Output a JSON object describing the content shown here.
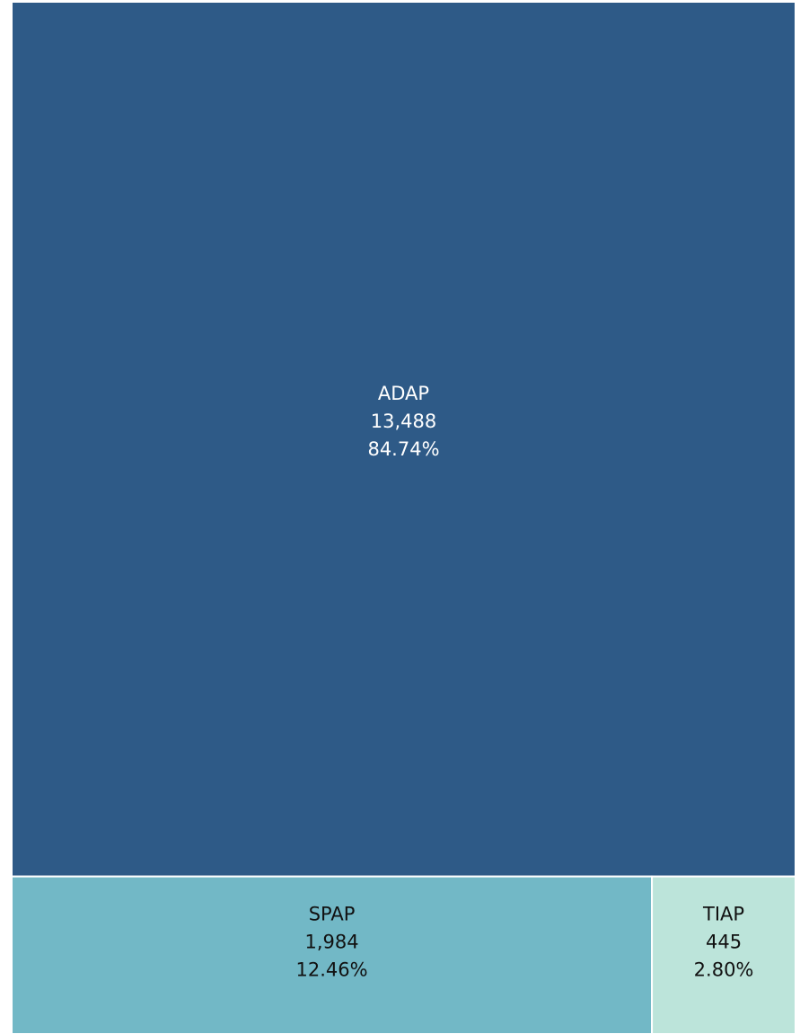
{
  "chart_data": {
    "type": "treemap",
    "title": "",
    "items": [
      {
        "name": "ADAP",
        "value": 13488,
        "value_label": "13,488",
        "percent_label": "84.74%",
        "color": "#2e5a87",
        "text_color": "#ffffff"
      },
      {
        "name": "SPAP",
        "value": 1984,
        "value_label": "1,984",
        "percent_label": "12.46%",
        "color": "#72b8c6",
        "text_color": "#111111"
      },
      {
        "name": "TIAP",
        "value": 445,
        "value_label": "445",
        "percent_label": "2.80%",
        "color": "#bce4da",
        "text_color": "#111111"
      }
    ]
  }
}
